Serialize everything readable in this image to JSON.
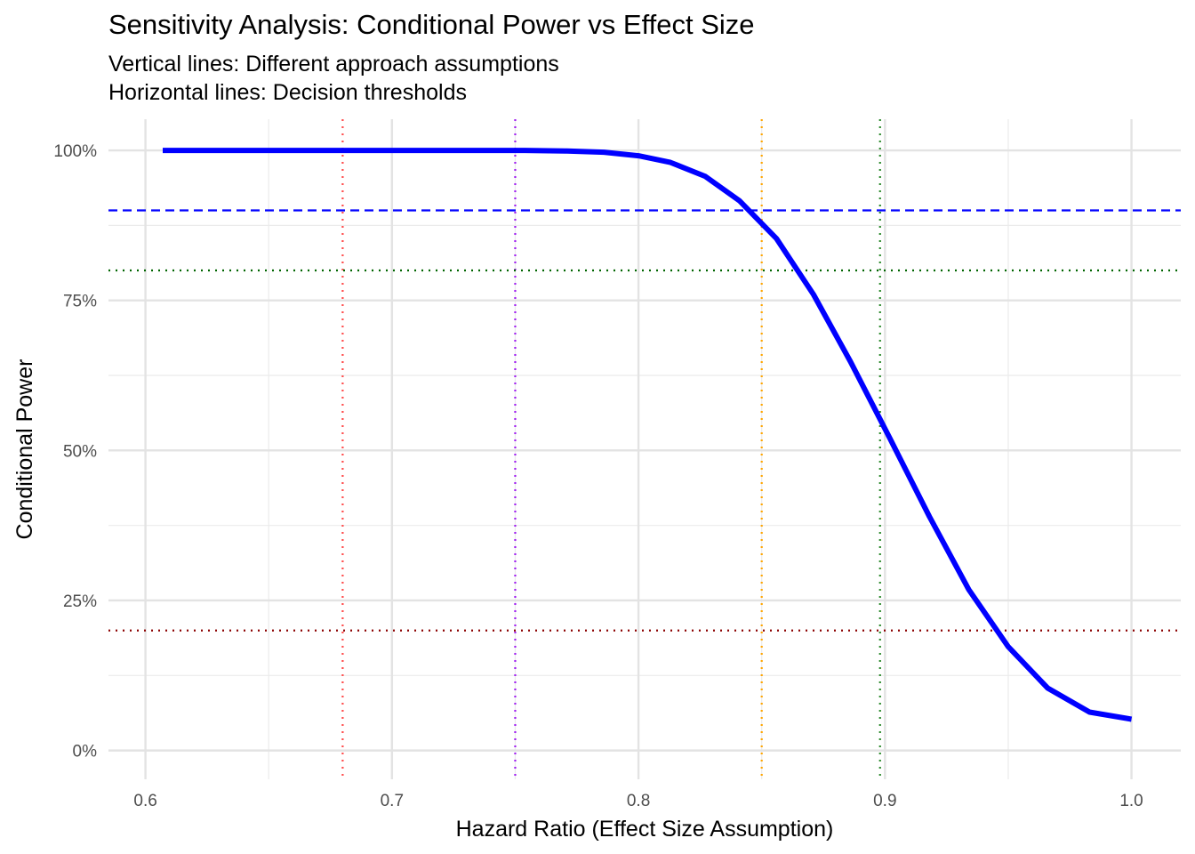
{
  "chart_data": {
    "type": "line",
    "title": "Sensitivity Analysis: Conditional Power vs Effect Size",
    "subtitle_lines": [
      "Vertical lines: Different approach assumptions",
      "Horizontal lines: Decision thresholds"
    ],
    "xlabel": "Hazard Ratio (Effect Size Assumption)",
    "ylabel": "Conditional Power",
    "xlim": [
      0.585,
      1.02
    ],
    "ylim": [
      -0.048,
      1.052
    ],
    "x_ticks": [
      0.6,
      0.7,
      0.8,
      0.9,
      1.0
    ],
    "x_tick_labels": [
      "0.6",
      "0.7",
      "0.8",
      "0.9",
      "1.0"
    ],
    "y_ticks": [
      0,
      0.25,
      0.5,
      0.75,
      1.0
    ],
    "y_tick_labels": [
      "0%",
      "25%",
      "50%",
      "75%",
      "100%"
    ],
    "grid": true,
    "series": [
      {
        "color": "#0000ff",
        "x": [
          0.607,
          0.623,
          0.64,
          0.656,
          0.672,
          0.689,
          0.705,
          0.721,
          0.738,
          0.754,
          0.771,
          0.786,
          0.8,
          0.813,
          0.827,
          0.841,
          0.856,
          0.871,
          0.886,
          0.902,
          0.918,
          0.934,
          0.95,
          0.966,
          0.983,
          1.0
        ],
        "y": [
          1.0,
          1.0,
          1.0,
          1.0,
          1.0,
          1.0,
          1.0,
          1.0,
          1.0,
          1.0,
          0.999,
          0.997,
          0.991,
          0.98,
          0.957,
          0.916,
          0.853,
          0.76,
          0.648,
          0.52,
          0.39,
          0.268,
          0.173,
          0.104,
          0.064,
          0.052
        ]
      }
    ],
    "vertical_reference_lines": [
      {
        "x": 0.68,
        "color": "#ff4d4d",
        "style": "dotted"
      },
      {
        "x": 0.75,
        "color": "#a020f0",
        "style": "dotted"
      },
      {
        "x": 0.85,
        "color": "#ffa500",
        "style": "dotted"
      },
      {
        "x": 0.898,
        "color": "#2e8b2e",
        "style": "dotted"
      }
    ],
    "horizontal_reference_lines": [
      {
        "y": 0.9,
        "color": "#0000ff",
        "style": "dashed"
      },
      {
        "y": 0.8,
        "color": "#006400",
        "style": "dotted"
      },
      {
        "y": 0.2,
        "color": "#8b0000",
        "style": "dotted"
      }
    ]
  }
}
